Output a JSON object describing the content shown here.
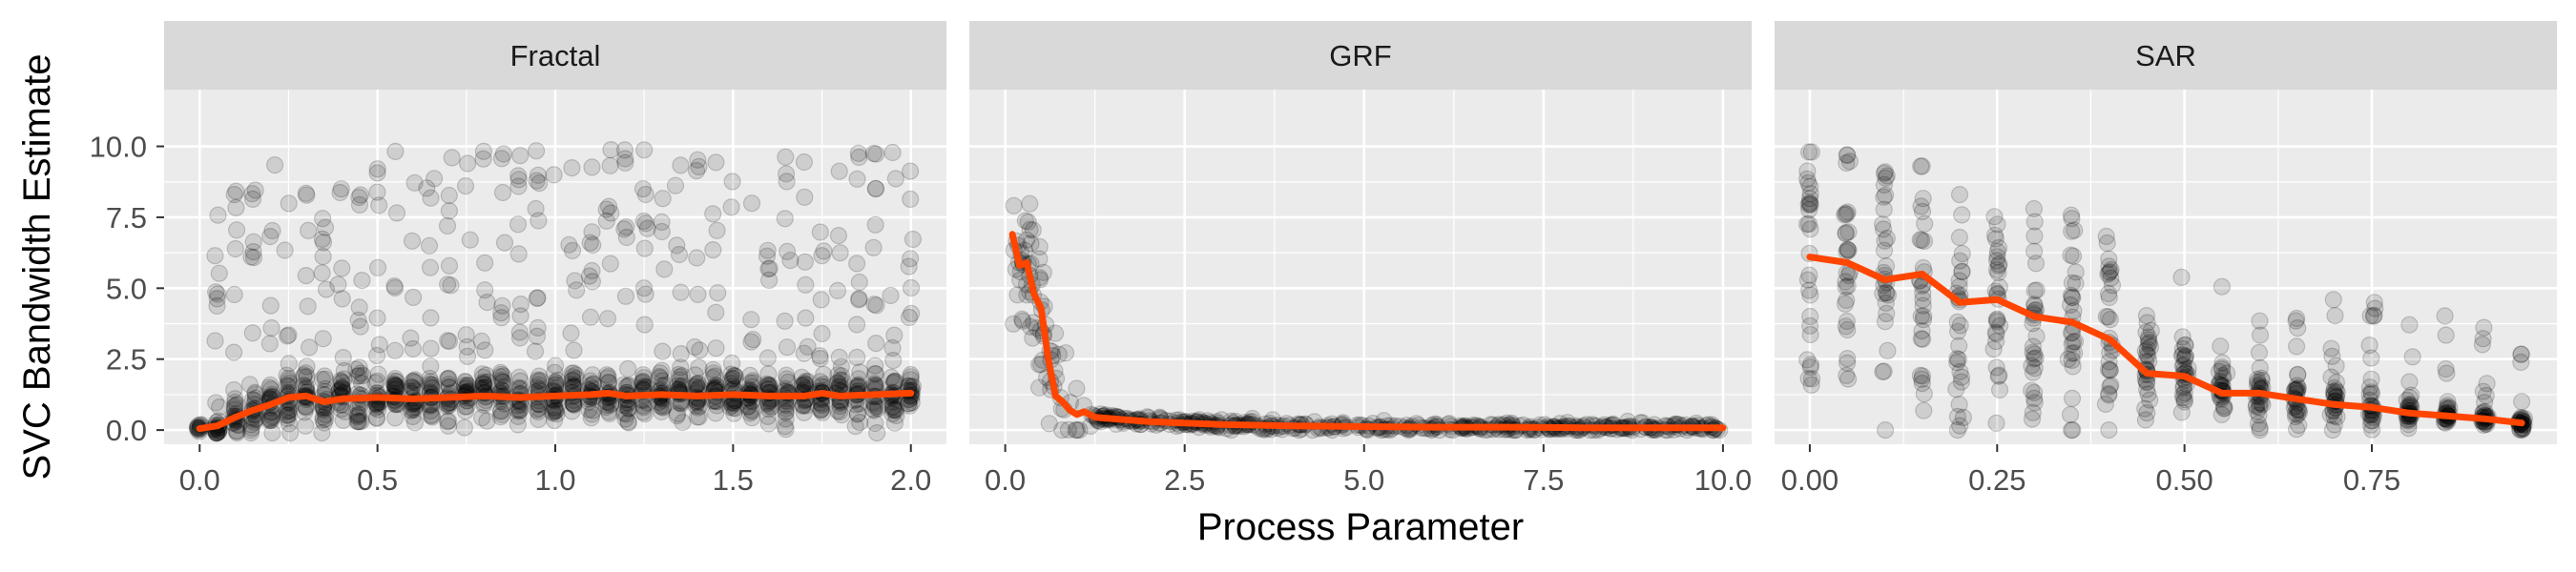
{
  "chart_data": {
    "type": "scatter",
    "ylabel": "SVC Bandwidth Estimate",
    "xlabel": "Process Parameter",
    "ylim": [
      -0.5,
      12.0
    ],
    "yticks": [
      0.0,
      2.5,
      5.0,
      7.5,
      10.0
    ],
    "ytick_labels": [
      "0.0",
      "2.5",
      "5.0",
      "7.5",
      "10.0"
    ],
    "grid": true,
    "colors": {
      "panel_bg": "#ebebeb",
      "strip_bg": "#d9d9d9",
      "grid": "#ffffff",
      "points": "#000000",
      "trend": "#ff4500"
    },
    "panels": [
      {
        "strip_label": "Fractal",
        "xlim": [
          -0.1,
          2.1
        ],
        "xticks": [
          0.0,
          0.5,
          1.0,
          1.5,
          2.0
        ],
        "xtick_labels": [
          "0.0",
          "0.5",
          "1.0",
          "1.5",
          "2.0"
        ],
        "trend": {
          "name": "",
          "x": [
            0.0,
            0.05,
            0.1,
            0.15,
            0.2,
            0.25,
            0.3,
            0.35,
            0.4,
            0.5,
            0.6,
            0.7,
            0.8,
            0.9,
            1.0,
            1.1,
            1.15,
            1.2,
            1.3,
            1.4,
            1.5,
            1.6,
            1.7,
            1.75,
            1.8,
            1.9,
            2.0
          ],
          "y": [
            0.05,
            0.15,
            0.45,
            0.7,
            0.9,
            1.15,
            1.2,
            1.0,
            1.1,
            1.15,
            1.1,
            1.15,
            1.2,
            1.15,
            1.2,
            1.25,
            1.3,
            1.2,
            1.25,
            1.2,
            1.25,
            1.2,
            1.2,
            1.3,
            1.2,
            1.25,
            1.3
          ]
        }
      },
      {
        "strip_label": "GRF",
        "xlim": [
          -0.5,
          10.4
        ],
        "xticks": [
          0.0,
          2.5,
          5.0,
          7.5,
          10.0
        ],
        "xtick_labels": [
          "0.0",
          "2.5",
          "5.0",
          "7.5",
          "10.0"
        ],
        "trend": {
          "name": "",
          "x": [
            0.1,
            0.2,
            0.3,
            0.4,
            0.5,
            0.6,
            0.7,
            0.8,
            0.9,
            1.0,
            1.1,
            1.25,
            1.5,
            2.0,
            2.5,
            3.0,
            4.0,
            5.0,
            6.0,
            7.0,
            8.0,
            9.0,
            10.0
          ],
          "y": [
            6.9,
            5.8,
            5.9,
            4.8,
            4.3,
            2.5,
            1.2,
            1.0,
            0.7,
            0.55,
            0.65,
            0.45,
            0.4,
            0.3,
            0.25,
            0.2,
            0.15,
            0.12,
            0.1,
            0.1,
            0.08,
            0.08,
            0.08
          ]
        }
      },
      {
        "strip_label": "SAR",
        "xlim": [
          -0.047,
          0.997
        ],
        "xticks": [
          0.0,
          0.25,
          0.5,
          0.75
        ],
        "xtick_labels": [
          "0.00",
          "0.25",
          "0.50",
          "0.75"
        ],
        "trend": {
          "name": "",
          "x": [
            0.0,
            0.05,
            0.1,
            0.15,
            0.2,
            0.25,
            0.3,
            0.35,
            0.4,
            0.45,
            0.5,
            0.55,
            0.6,
            0.65,
            0.7,
            0.75,
            0.8,
            0.85,
            0.9,
            0.95
          ],
          "y": [
            6.1,
            5.9,
            5.3,
            5.5,
            4.5,
            4.6,
            4.0,
            3.8,
            3.2,
            2.0,
            1.9,
            1.3,
            1.3,
            1.1,
            0.9,
            0.8,
            0.6,
            0.5,
            0.4,
            0.25
          ]
        }
      }
    ]
  }
}
